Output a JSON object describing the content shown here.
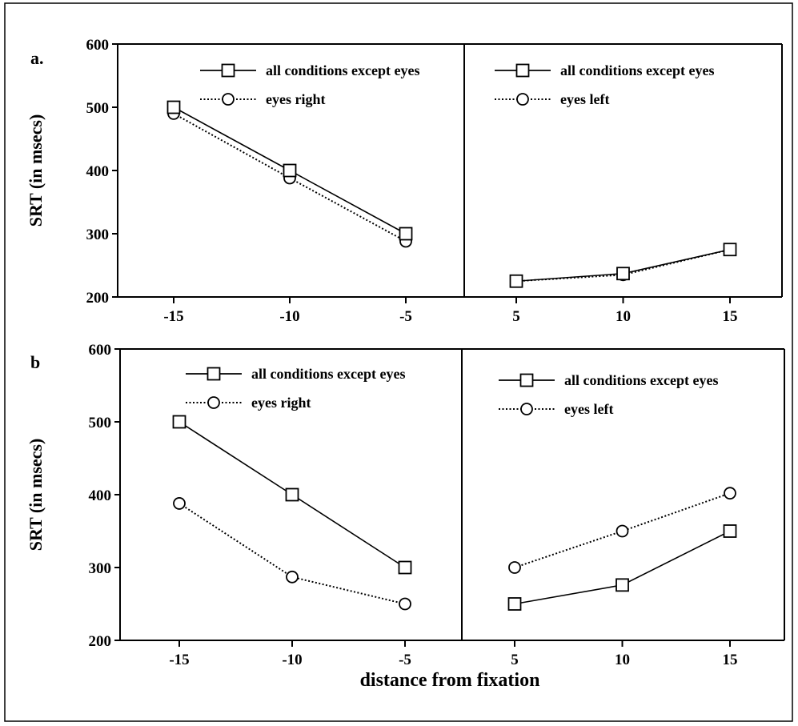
{
  "chart_data": [
    {
      "panel": "a.",
      "type": "line",
      "ylabel": "SRT (in msecs)",
      "xlabel": "",
      "ylim": [
        200,
        600
      ],
      "yticks": [
        200,
        300,
        400,
        500,
        600
      ],
      "xticks": [
        -15,
        -10,
        -5,
        5,
        10,
        15
      ],
      "subplots": [
        {
          "legend_position": "top-right",
          "series": [
            {
              "name": "all conditions except eyes",
              "marker": "square",
              "style": "solid",
              "x": [
                -15,
                -10,
                -5
              ],
              "y": [
                500,
                400,
                300
              ]
            },
            {
              "name": "eyes right",
              "marker": "circle",
              "style": "dotted",
              "x": [
                -15,
                -10,
                -5
              ],
              "y": [
                490,
                388,
                288
              ]
            }
          ]
        },
        {
          "legend_position": "top-right",
          "series": [
            {
              "name": "all conditions except eyes",
              "marker": "square",
              "style": "solid",
              "x": [
                5,
                10,
                15
              ],
              "y": [
                225,
                237,
                275
              ]
            },
            {
              "name": "eyes left",
              "marker": "circle",
              "style": "dotted",
              "x": [
                5,
                10,
                15
              ],
              "y": [
                225,
                235,
                275
              ]
            }
          ]
        }
      ]
    },
    {
      "panel": "b",
      "type": "line",
      "ylabel": "SRT (in msecs)",
      "xlabel": "distance from fixation",
      "ylim": [
        200,
        600
      ],
      "yticks": [
        200,
        300,
        400,
        500,
        600
      ],
      "xticks": [
        -15,
        -10,
        -5,
        5,
        10,
        15
      ],
      "subplots": [
        {
          "legend_position": "top-right",
          "series": [
            {
              "name": "all conditions except eyes",
              "marker": "square",
              "style": "solid",
              "x": [
                -15,
                -10,
                -5
              ],
              "y": [
                500,
                400,
                300
              ]
            },
            {
              "name": "eyes right",
              "marker": "circle",
              "style": "dotted",
              "x": [
                -15,
                -10,
                -5
              ],
              "y": [
                388,
                287,
                250
              ]
            }
          ]
        },
        {
          "legend_position": "top-right",
          "series": [
            {
              "name": "all conditions except eyes",
              "marker": "square",
              "style": "solid",
              "x": [
                5,
                10,
                15
              ],
              "y": [
                250,
                276,
                350
              ]
            },
            {
              "name": "eyes left",
              "marker": "circle",
              "style": "dotted",
              "x": [
                5,
                10,
                15
              ],
              "y": [
                300,
                350,
                402
              ]
            }
          ]
        }
      ]
    }
  ]
}
